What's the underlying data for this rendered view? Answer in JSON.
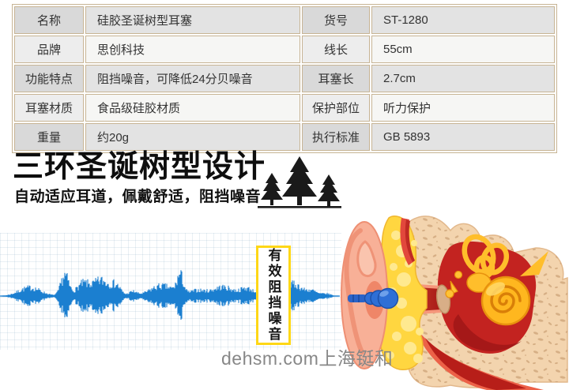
{
  "product_table": {
    "rows": [
      {
        "k1": "名称",
        "v1": "硅胶圣诞树型耳塞",
        "k2": "货号",
        "v2": "ST-1280"
      },
      {
        "k1": "品牌",
        "v1": "思创科技",
        "k2": "线长",
        "v2": "55cm"
      },
      {
        "k1": "功能特点",
        "v1": "阻挡噪音，可降低24分贝噪音",
        "k2": "耳塞长",
        "v2": "2.7cm"
      },
      {
        "k1": "耳塞材质",
        "v1": "食品级硅胶材质",
        "k2": "保护部位",
        "v2": "听力保护"
      },
      {
        "k1": "重量",
        "v1": "约20g",
        "k2": "执行标准",
        "v2": "GB 5893"
      }
    ]
  },
  "feature_section": {
    "title": "三环圣诞树型设计",
    "subtitle": "自动适应耳道，佩戴舒适，阻挡噪音"
  },
  "noise_callout": {
    "text": "有效阻挡噪音"
  },
  "watermark": "dehsm.com上海铤和",
  "colors": {
    "table_border": "#c7b494",
    "callout_yellow": "#fed716",
    "waveform_blue": "#1b7fd0",
    "title_black": "#0e0e0e"
  }
}
